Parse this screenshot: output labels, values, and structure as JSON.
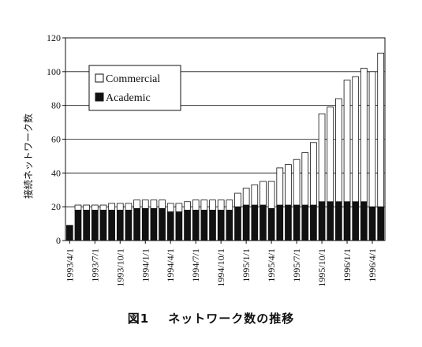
{
  "caption": {
    "figure_number": "図1",
    "text": "ネットワーク数の推移"
  },
  "colors": {
    "academic": "#111111",
    "commercial": "#ffffff",
    "outline": "#111111",
    "grid": "#111111"
  },
  "chart_data": {
    "type": "bar",
    "stacked": true,
    "ylabel": "接続ネットワーク数",
    "ylim": [
      0,
      120
    ],
    "yticks": [
      0,
      20,
      40,
      60,
      80,
      100,
      120
    ],
    "grid": "horizontal",
    "legend_position": "top-left",
    "xtick_labels": [
      {
        "label": "1993/4/1",
        "index": 0
      },
      {
        "label": "1993/7/1",
        "index": 3
      },
      {
        "label": "1993/10/1",
        "index": 6
      },
      {
        "label": "1994/1/1",
        "index": 9
      },
      {
        "label": "1994/4/1",
        "index": 12
      },
      {
        "label": "1994/7/1",
        "index": 15
      },
      {
        "label": "1994/10/1",
        "index": 18
      },
      {
        "label": "1995/1/1",
        "index": 21
      },
      {
        "label": "1995/4/1",
        "index": 24
      },
      {
        "label": "1995/7/1",
        "index": 27
      },
      {
        "label": "1995/10/1",
        "index": 30
      },
      {
        "label": "1996/1/1",
        "index": 33
      },
      {
        "label": "1996/4/1",
        "index": 36
      }
    ],
    "series": [
      {
        "name": "Academic",
        "values": [
          9,
          18,
          18,
          18,
          18,
          18,
          18,
          18,
          19,
          19,
          19,
          19,
          17,
          17,
          18,
          18,
          18,
          18,
          18,
          18,
          20,
          21,
          21,
          21,
          19,
          21,
          21,
          21,
          21,
          21,
          23,
          23,
          23,
          23,
          23,
          23,
          20,
          20
        ]
      },
      {
        "name": "Commercial",
        "values": [
          0,
          3,
          3,
          3,
          3,
          4,
          4,
          4,
          5,
          5,
          5,
          5,
          5,
          5,
          5,
          6,
          6,
          6,
          6,
          6,
          8,
          10,
          12,
          14,
          16,
          22,
          24,
          27,
          31,
          37,
          52,
          56,
          61,
          72,
          74,
          79,
          80,
          91
        ]
      }
    ]
  }
}
